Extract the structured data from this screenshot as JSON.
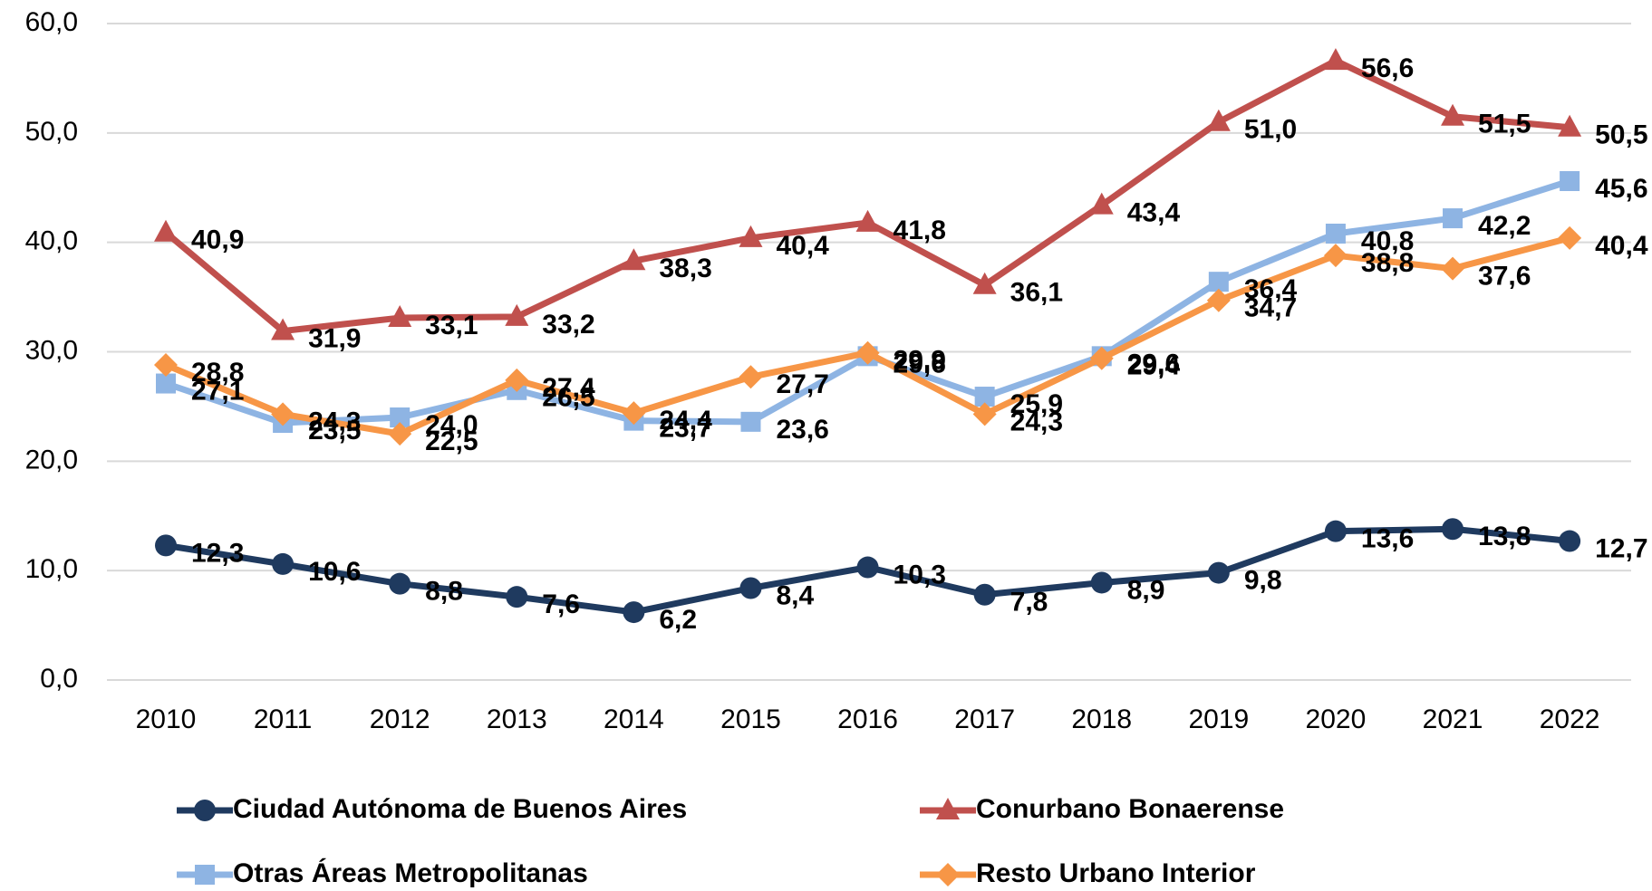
{
  "chart_data": {
    "type": "line",
    "categories": [
      "2010",
      "2011",
      "2012",
      "2013",
      "2014",
      "2015",
      "2016",
      "2017",
      "2018",
      "2019",
      "2020",
      "2021",
      "2022"
    ],
    "ylim": [
      0,
      60
    ],
    "yticks": [
      {
        "value": 0,
        "label": "0,0"
      },
      {
        "value": 10,
        "label": "10,0"
      },
      {
        "value": 20,
        "label": "20,0"
      },
      {
        "value": 30,
        "label": "30,0"
      },
      {
        "value": 40,
        "label": "40,0"
      },
      {
        "value": 50,
        "label": "50,0"
      },
      {
        "value": 60,
        "label": "60,0"
      }
    ],
    "grid": true,
    "legend": "bottom",
    "series": [
      {
        "name": "Ciudad Autónoma de Buenos Aires",
        "color": "#1f3a5f",
        "marker": "circle",
        "values": [
          12.3,
          10.6,
          8.8,
          7.6,
          6.2,
          8.4,
          10.3,
          7.8,
          8.9,
          9.8,
          13.6,
          13.8,
          12.7
        ],
        "value_labels": [
          "12,3",
          "10,6",
          "8,8",
          "7,6",
          "6,2",
          "8,4",
          "10,3",
          "7,8",
          "8,9",
          "9,8",
          "13,6",
          "13,8",
          "12,7"
        ]
      },
      {
        "name": "Conurbano Bonaerense",
        "color": "#c0504d",
        "marker": "triangle",
        "values": [
          40.9,
          31.9,
          33.1,
          33.2,
          38.3,
          40.4,
          41.8,
          36.1,
          43.4,
          51.0,
          56.6,
          51.5,
          50.5
        ],
        "value_labels": [
          "40,9",
          "31,9",
          "33,1",
          "33,2",
          "38,3",
          "40,4",
          "41,8",
          "36,1",
          "43,4",
          "51,0",
          "56,6",
          "51,5",
          "50,5"
        ]
      },
      {
        "name": "Otras Áreas Metropolitanas",
        "color": "#8eb4e3",
        "marker": "square",
        "values": [
          27.1,
          23.5,
          24.0,
          26.5,
          23.7,
          23.6,
          29.6,
          25.9,
          29.6,
          36.4,
          40.8,
          42.2,
          45.6
        ],
        "value_labels": [
          "27,1",
          "23,5",
          "24,0",
          "26,5",
          "23,7",
          "23,6",
          "29,6",
          "25,9",
          "29,6",
          "36,4",
          "40,8",
          "42,2",
          "45,6"
        ]
      },
      {
        "name": "Resto Urbano Interior",
        "color": "#f79646",
        "marker": "diamond",
        "values": [
          28.8,
          24.3,
          22.5,
          27.4,
          24.4,
          27.7,
          29.9,
          24.3,
          29.4,
          34.7,
          38.8,
          37.6,
          40.4
        ],
        "value_labels": [
          "28,8",
          "24,3",
          "22,5",
          "27,4",
          "24,4",
          "27,7",
          "29,9",
          "24,3",
          "29,4",
          "34,7",
          "38,8",
          "37,6",
          "40,4"
        ]
      }
    ]
  }
}
